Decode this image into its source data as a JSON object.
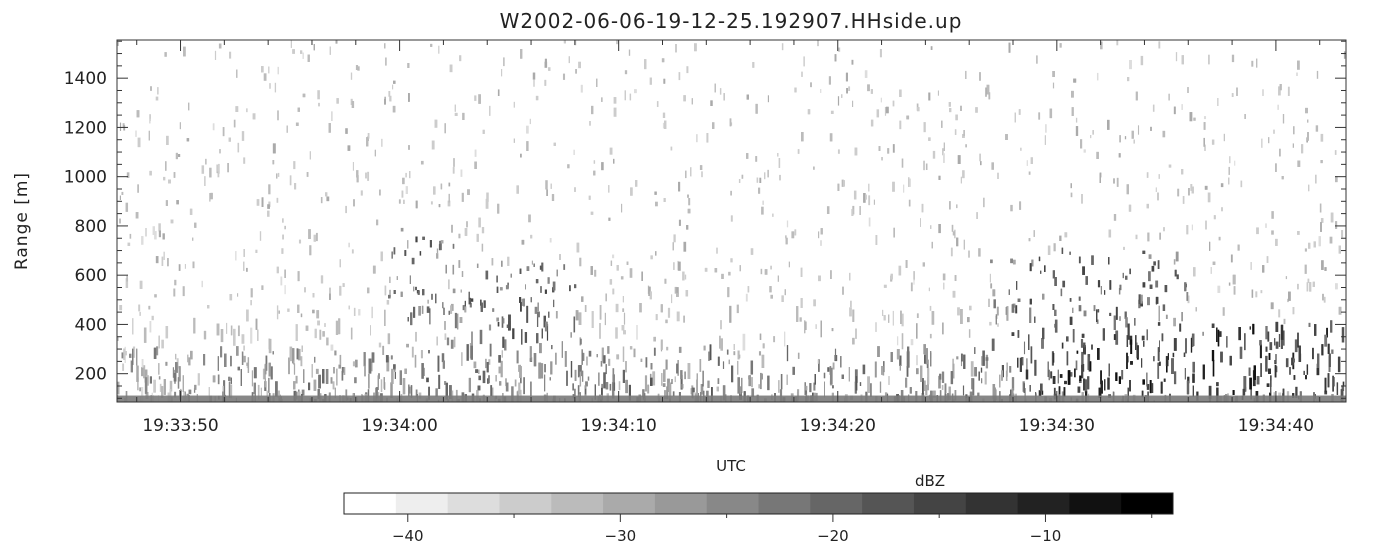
{
  "chart_data": {
    "type": "heatmap",
    "title": "W2002-06-06-19-12-25.192907.HHside.up",
    "xlabel": "UTC",
    "ylabel": "Range [m]",
    "x_tick_labels": [
      "19:33:50",
      "19:34:00",
      "19:34:10",
      "19:34:20",
      "19:34:30",
      "19:34:40"
    ],
    "x_tick_seconds": [
      -10,
      0,
      10,
      20,
      30,
      40
    ],
    "xlim_seconds": [
      -12.9,
      43.2
    ],
    "y_ticks": [
      200,
      400,
      600,
      800,
      1000,
      1200,
      1400
    ],
    "ylim": [
      85,
      1555
    ],
    "grid": false,
    "colorscale": {
      "label": "dBZ",
      "palette": "grayscale, white (low) to black (high)",
      "range": [
        -43,
        -4
      ],
      "n_levels": 16,
      "ticks": [
        -40,
        -30,
        -20,
        -10
      ]
    },
    "echo_regions": [
      {
        "t_start": -12.9,
        "t_end": 43.2,
        "range_top": 300,
        "mean_dbz": -25,
        "description": "continuous low-level backscatter layer"
      },
      {
        "t_start": -0.5,
        "t_end": 2.5,
        "range_bottom": 400,
        "range_top": 800,
        "mean_dbz": -22,
        "description": "rising plume"
      },
      {
        "t_start": 2,
        "t_end": 8.5,
        "range_bottom": 300,
        "range_top": 650,
        "mean_dbz": -22,
        "description": "enhanced echo patch"
      },
      {
        "t_start": 27,
        "t_end": 36,
        "range_bottom": 200,
        "range_top": 700,
        "mean_dbz": -20,
        "description": "enhanced echo patch"
      },
      {
        "t_start": 28,
        "t_end": 43.2,
        "range_bottom": 100,
        "range_top": 400,
        "mean_dbz": -14,
        "description": "strongest low-level echoes"
      }
    ]
  }
}
